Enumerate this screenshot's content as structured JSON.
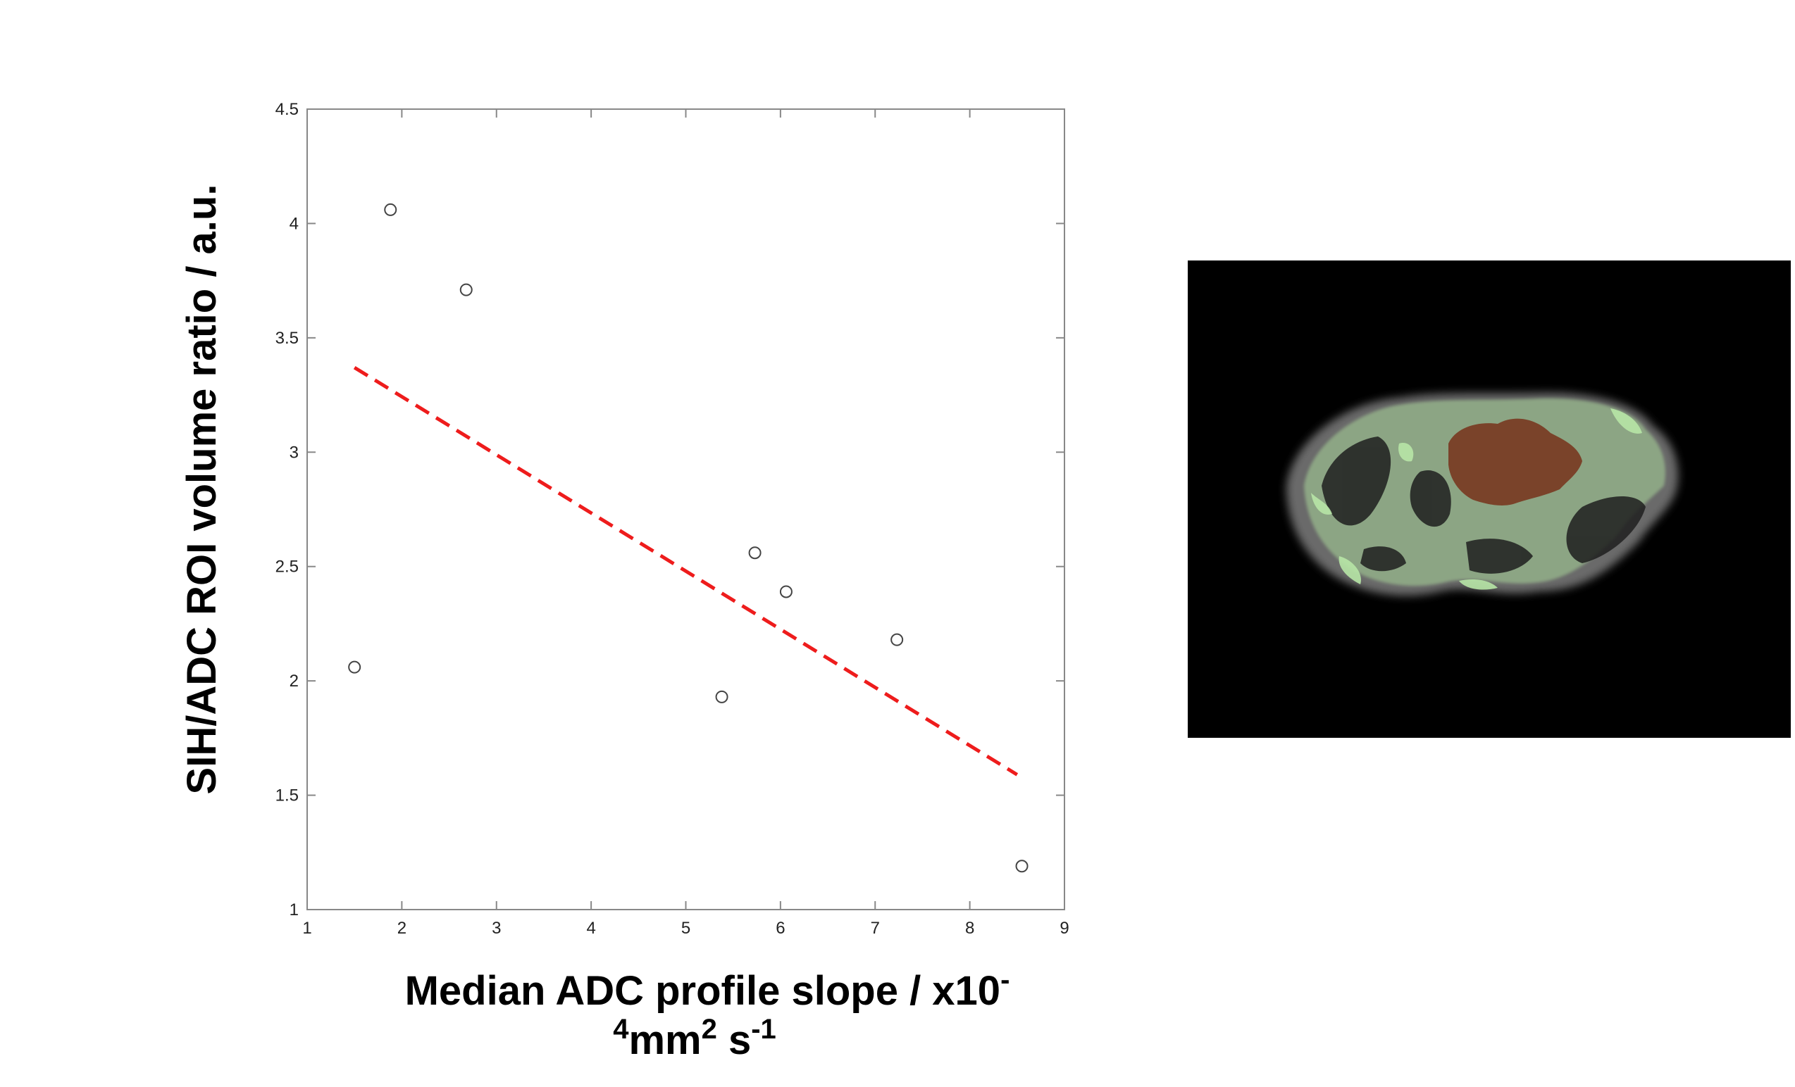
{
  "chart_data": {
    "type": "scatter",
    "title": "",
    "xlabel_line1": "Median ADC profile slope / x10",
    "xlabel_sup1": "-",
    "xlabel_line2_sup_a": "4",
    "xlabel_line2_a": "mm",
    "xlabel_line2_sup_b": "2",
    "xlabel_line2_b": " s",
    "xlabel_line2_sup_c": "-1",
    "ylabel": "SIH/ADC ROI volume ratio / a.u.",
    "xlim": [
      1,
      9
    ],
    "ylim": [
      1,
      4.5
    ],
    "xticks": [
      1,
      2,
      3,
      4,
      5,
      6,
      7,
      8,
      9
    ],
    "yticks": [
      1,
      1.5,
      2,
      2.5,
      3,
      3.5,
      4,
      4.5
    ],
    "grid": false,
    "points": [
      {
        "x": 1.5,
        "y": 2.06
      },
      {
        "x": 1.88,
        "y": 4.06
      },
      {
        "x": 2.68,
        "y": 3.71
      },
      {
        "x": 5.38,
        "y": 1.93
      },
      {
        "x": 5.73,
        "y": 2.56
      },
      {
        "x": 6.06,
        "y": 2.39
      },
      {
        "x": 7.23,
        "y": 2.18
      },
      {
        "x": 8.55,
        "y": 1.19
      }
    ],
    "fit_line": {
      "x": [
        1.5,
        8.5
      ],
      "y": [
        3.37,
        1.59
      ],
      "style": "dashed",
      "color": "#ee1c1c"
    }
  },
  "image_panel": {
    "background": "#000000",
    "tissue_color": "#6e6e6e",
    "mask_color": "#b4e0a4",
    "roi_color": "#7a432a"
  }
}
